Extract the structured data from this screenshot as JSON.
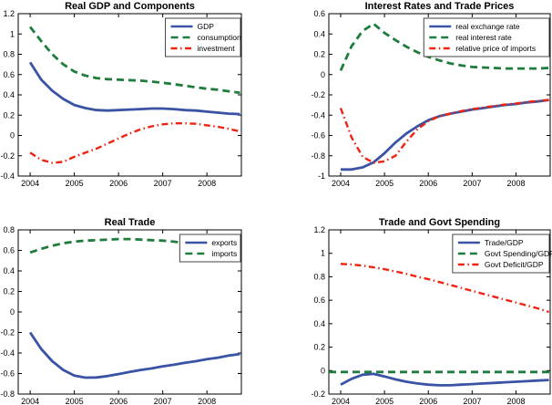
{
  "figure": {
    "background": "#ffffff",
    "colors": {
      "blue": "#3A53A4",
      "green": "#1E7C3D",
      "red": "#EE2413",
      "axis": "#000000",
      "legend_border": "#444444"
    }
  },
  "chart_data": [
    {
      "id": "real-gdp-and-components",
      "type": "line",
      "title": "Real GDP and Components",
      "xlim": [
        2003.73,
        2008.78
      ],
      "ylim": [
        -0.4,
        1.2
      ],
      "xticks": [
        2004,
        2005,
        2006,
        2007,
        2008
      ],
      "yticks": [
        -0.4,
        -0.2,
        0,
        0.2,
        0.4,
        0.6,
        0.8,
        1,
        1.2
      ],
      "legend_position": "top-right",
      "grid": false,
      "x": [
        2004,
        2004.25,
        2004.5,
        2004.75,
        2005,
        2005.25,
        2005.5,
        2005.75,
        2006,
        2006.25,
        2006.5,
        2006.75,
        2007,
        2007.25,
        2007.5,
        2007.75,
        2008,
        2008.25,
        2008.5,
        2008.75
      ],
      "series": [
        {
          "name": "GDP",
          "color": "blue",
          "style": "solid",
          "values": [
            0.72,
            0.55,
            0.44,
            0.36,
            0.3,
            0.27,
            0.25,
            0.245,
            0.25,
            0.255,
            0.26,
            0.265,
            0.265,
            0.26,
            0.25,
            0.245,
            0.235,
            0.225,
            0.215,
            0.21
          ]
        },
        {
          "name": "consumption",
          "color": "green",
          "style": "dashed",
          "values": [
            1.07,
            0.93,
            0.8,
            0.7,
            0.63,
            0.59,
            0.565,
            0.555,
            0.55,
            0.545,
            0.54,
            0.53,
            0.52,
            0.505,
            0.49,
            0.475,
            0.46,
            0.45,
            0.435,
            0.42
          ]
        },
        {
          "name": "investment",
          "color": "red",
          "style": "dashdot",
          "values": [
            -0.17,
            -0.24,
            -0.27,
            -0.26,
            -0.21,
            -0.17,
            -0.13,
            -0.08,
            -0.03,
            0.02,
            0.06,
            0.09,
            0.11,
            0.12,
            0.12,
            0.115,
            0.1,
            0.085,
            0.065,
            0.04
          ]
        }
      ]
    },
    {
      "id": "interest-rates-and-trade-prices",
      "type": "line",
      "title": "Interest Rates and Trade Prices",
      "xlim": [
        2003.73,
        2008.78
      ],
      "ylim": [
        -1,
        0.6
      ],
      "xticks": [
        2004,
        2005,
        2006,
        2007,
        2008
      ],
      "yticks": [
        -1,
        -0.8,
        -0.6,
        -0.4,
        -0.2,
        0,
        0.2,
        0.4,
        0.6
      ],
      "legend_position": "top-right",
      "grid": false,
      "x": [
        2004,
        2004.25,
        2004.5,
        2004.75,
        2005,
        2005.25,
        2005.5,
        2005.75,
        2006,
        2006.25,
        2006.5,
        2006.75,
        2007,
        2007.25,
        2007.5,
        2007.75,
        2008,
        2008.25,
        2008.5,
        2008.75
      ],
      "series": [
        {
          "name": "real exchange rate",
          "color": "blue",
          "style": "solid",
          "values": [
            -0.935,
            -0.935,
            -0.915,
            -0.865,
            -0.775,
            -0.67,
            -0.58,
            -0.51,
            -0.45,
            -0.41,
            -0.385,
            -0.365,
            -0.345,
            -0.33,
            -0.315,
            -0.3,
            -0.29,
            -0.275,
            -0.265,
            -0.25
          ]
        },
        {
          "name": "real interest rate",
          "color": "green",
          "style": "dashed",
          "values": [
            0.04,
            0.28,
            0.43,
            0.5,
            0.41,
            0.34,
            0.275,
            0.22,
            0.175,
            0.14,
            0.11,
            0.09,
            0.075,
            0.07,
            0.065,
            0.06,
            0.06,
            0.06,
            0.06,
            0.065
          ]
        },
        {
          "name": "relative price of imports",
          "color": "red",
          "style": "dashdot",
          "values": [
            -0.33,
            -0.62,
            -0.81,
            -0.87,
            -0.855,
            -0.8,
            -0.66,
            -0.54,
            -0.46,
            -0.41,
            -0.385,
            -0.36,
            -0.34,
            -0.325,
            -0.31,
            -0.295,
            -0.285,
            -0.27,
            -0.26,
            -0.25
          ]
        }
      ]
    },
    {
      "id": "real-trade",
      "type": "line",
      "title": "Real Trade",
      "xlim": [
        2003.73,
        2008.78
      ],
      "ylim": [
        -0.8,
        0.8
      ],
      "xticks": [
        2004,
        2005,
        2006,
        2007,
        2008
      ],
      "yticks": [
        -0.8,
        -0.6,
        -0.4,
        -0.2,
        0,
        0.2,
        0.4,
        0.6,
        0.8
      ],
      "legend_position": "top-right",
      "grid": false,
      "x": [
        2004,
        2004.25,
        2004.5,
        2004.75,
        2005,
        2005.25,
        2005.5,
        2005.75,
        2006,
        2006.25,
        2006.5,
        2006.75,
        2007,
        2007.25,
        2007.5,
        2007.75,
        2008,
        2008.25,
        2008.5,
        2008.75
      ],
      "series": [
        {
          "name": "exports",
          "color": "blue",
          "style": "solid",
          "values": [
            -0.2,
            -0.36,
            -0.48,
            -0.565,
            -0.62,
            -0.64,
            -0.638,
            -0.625,
            -0.605,
            -0.585,
            -0.565,
            -0.55,
            -0.53,
            -0.515,
            -0.495,
            -0.48,
            -0.46,
            -0.445,
            -0.425,
            -0.41
          ]
        },
        {
          "name": "imports",
          "color": "green",
          "style": "dashed",
          "values": [
            0.58,
            0.615,
            0.645,
            0.67,
            0.685,
            0.695,
            0.7,
            0.705,
            0.71,
            0.71,
            0.705,
            0.7,
            0.695,
            0.685,
            0.67,
            0.655,
            0.635,
            0.605,
            0.57,
            0.52
          ]
        }
      ]
    },
    {
      "id": "trade-and-govt-spending",
      "type": "line",
      "title": "Trade and Govt Spending",
      "xlim": [
        2003.73,
        2008.78
      ],
      "ylim": [
        -0.2,
        1.2
      ],
      "xticks": [
        2004,
        2005,
        2006,
        2007,
        2008
      ],
      "yticks": [
        -0.2,
        0,
        0.2,
        0.4,
        0.6,
        0.8,
        1,
        1.2
      ],
      "legend_position": "top-right",
      "grid": false,
      "x": [
        2004,
        2004.25,
        2004.5,
        2004.75,
        2005,
        2005.25,
        2005.5,
        2005.75,
        2006,
        2006.25,
        2006.5,
        2006.75,
        2007,
        2007.25,
        2007.5,
        2007.75,
        2008,
        2008.25,
        2008.5,
        2008.75
      ],
      "series": [
        {
          "name": "Trade/GDP",
          "color": "blue",
          "style": "solid",
          "values": [
            -0.12,
            -0.07,
            -0.035,
            -0.028,
            -0.05,
            -0.075,
            -0.095,
            -0.11,
            -0.12,
            -0.125,
            -0.125,
            -0.12,
            -0.115,
            -0.11,
            -0.105,
            -0.1,
            -0.095,
            -0.09,
            -0.085,
            -0.08
          ]
        },
        {
          "name": "Govt Spending/GDP",
          "color": "green",
          "style": "dashed",
          "x": [
            2003.73,
            2008.78
          ],
          "values": [
            -0.012,
            -0.012
          ]
        },
        {
          "name": "Govt Deficit/GDP",
          "color": "red",
          "style": "dashdot",
          "values": [
            0.91,
            0.905,
            0.895,
            0.88,
            0.865,
            0.845,
            0.825,
            0.8,
            0.78,
            0.755,
            0.73,
            0.705,
            0.68,
            0.655,
            0.63,
            0.605,
            0.58,
            0.555,
            0.53,
            0.5
          ]
        }
      ]
    }
  ]
}
